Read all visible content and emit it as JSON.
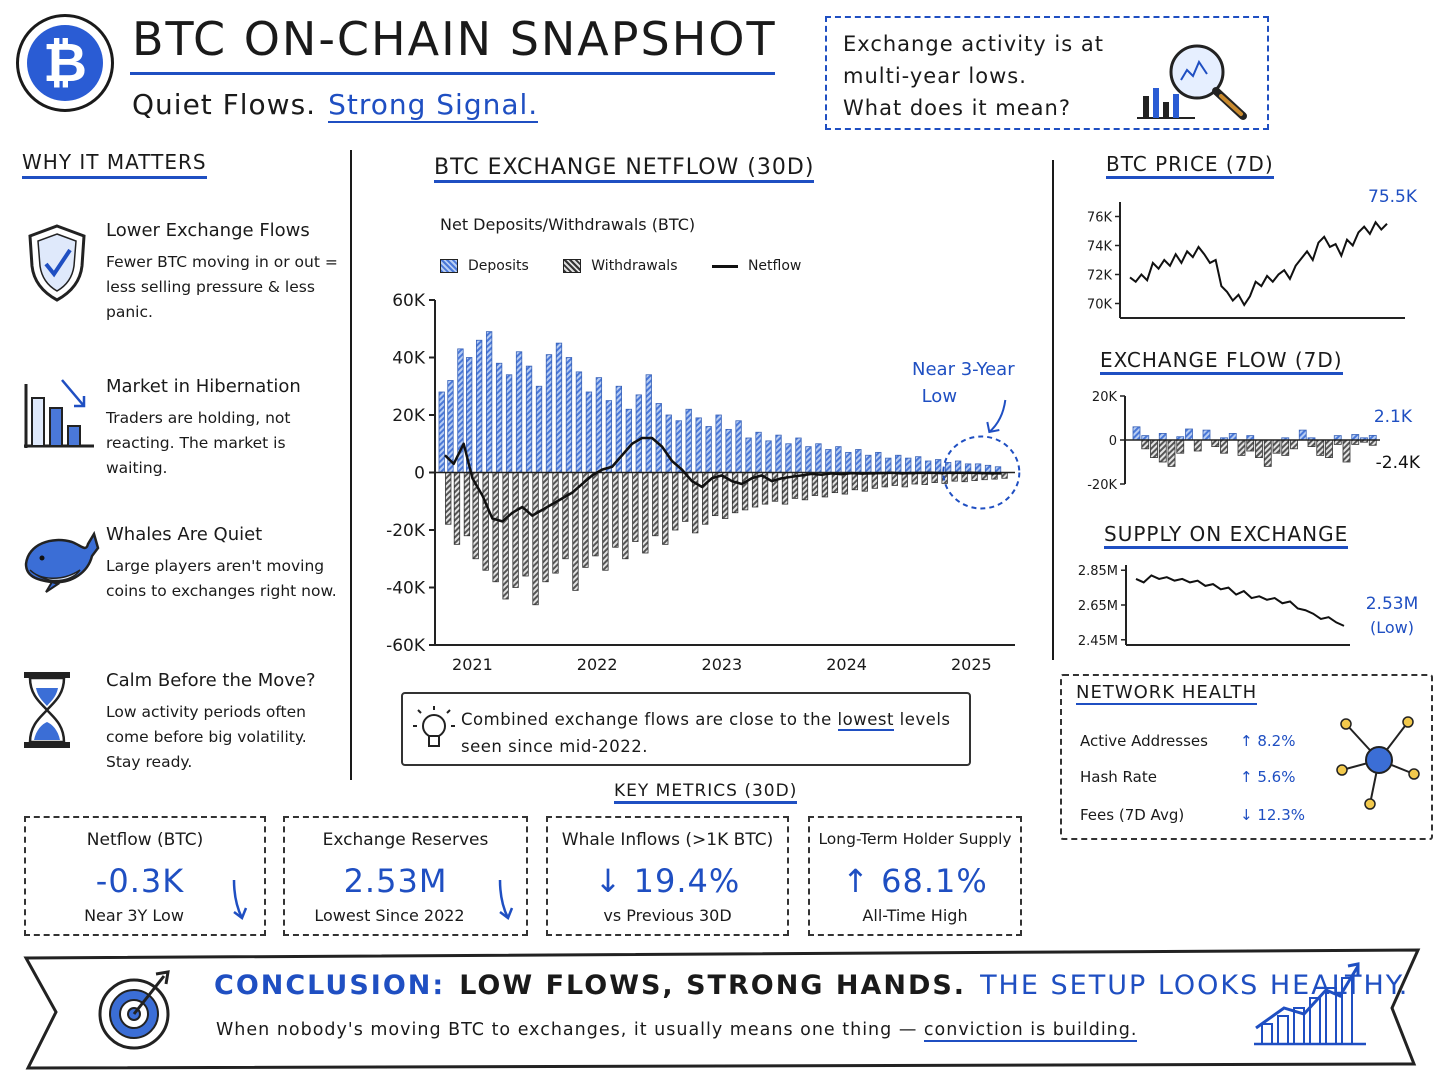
{
  "header": {
    "logo_glyph": "₿",
    "title": "BTC ON-CHAIN SNAPSHOT",
    "subtitle_plain": "Quiet Flows.",
    "subtitle_highlight": "Strong Signal."
  },
  "callout": {
    "line1": "Exchange activity is at",
    "line2": "multi-year lows.",
    "line3": "What does it mean?",
    "icon": "magnifier-chart-icon"
  },
  "why": {
    "title": "WHY IT MATTERS",
    "items": [
      {
        "icon": "shield-check-icon",
        "heading": "Lower Exchange Flows",
        "body": "Fewer BTC moving in or out = less selling pressure & less panic."
      },
      {
        "icon": "declining-bars-icon",
        "heading": "Market in Hibernation",
        "body": "Traders are holding, not reacting. The market is waiting."
      },
      {
        "icon": "whale-icon",
        "heading": "Whales Are Quiet",
        "body": "Large players aren't moving coins to exchanges right now."
      },
      {
        "icon": "hourglass-icon",
        "heading": "Calm Before the Move?",
        "body": "Low activity periods often come before big volatility. Stay ready."
      }
    ]
  },
  "main_chart": {
    "title": "BTC EXCHANGE NETFLOW (30D)",
    "subtitle": "Net Deposits/Withdrawals (BTC)",
    "legend": {
      "deposits": "Deposits",
      "withdrawals": "Withdrawals",
      "netflow": "Netflow"
    },
    "annotation_line1": "Near 3-Year",
    "annotation_line2": "Low"
  },
  "insight": {
    "icon": "lightbulb-icon",
    "text_before": "Combined exchange flows are close to the",
    "text_underlined": "lowest",
    "text_after": "levels seen since mid-2022."
  },
  "right": {
    "price_title": "BTC PRICE (7D)",
    "flow_title": "EXCHANGE FLOW (7D)",
    "supply_title": "SUPPLY ON EXCHANGE",
    "price_last_label": "75.5K",
    "flow_pos_label": "2.1K",
    "flow_neg_label": "-2.4K",
    "supply_last_label": "2.53M",
    "supply_last_note": "(Low)"
  },
  "network_health": {
    "title": "NETWORK HEALTH",
    "icon": "network-node-icon",
    "rows": [
      {
        "label": "Active Addresses",
        "value": "↑ 8.2%"
      },
      {
        "label": "Hash Rate",
        "value": "↑ 5.6%"
      },
      {
        "label": "Fees (7D Avg)",
        "value": "↓ 12.3%"
      }
    ]
  },
  "key_metrics": {
    "title": "KEY METRICS (30D)",
    "cards": [
      {
        "label": "Netflow (BTC)",
        "value": "-0.3K",
        "sub": "Near 3Y Low"
      },
      {
        "label": "Exchange Reserves",
        "value": "2.53M",
        "sub": "Lowest Since 2022"
      },
      {
        "label": "Whale Inflows (>1K BTC)",
        "value": "↓ 19.4%",
        "sub": "vs Previous 30D"
      },
      {
        "label": "Long-Term Holder Supply",
        "value": "↑ 68.1%",
        "sub": "All-Time High"
      }
    ]
  },
  "conclusion": {
    "label": "CONCLUSION:",
    "statement": "LOW FLOWS, STRONG HANDS.",
    "verdict": "THE SETUP LOOKS HEALTHY.",
    "body_before": "When nobody's moving BTC to exchanges, it usually means one thing —",
    "body_underlined": "conviction is building.",
    "icon_left": "target-arrow-icon",
    "icon_right": "rising-bars-icon"
  },
  "colors": {
    "accent": "#1f4fc2",
    "deposit": "#4a78d8",
    "withdrawal": "#555555",
    "ink": "#1a1a1a"
  },
  "chart_data": [
    {
      "type": "bar",
      "title": "BTC EXCHANGE NETFLOW (30D)",
      "subtitle": "Net Deposits/Withdrawals (BTC)",
      "ylim": [
        -60000,
        60000
      ],
      "y_ticks": [
        -60000,
        -40000,
        -20000,
        0,
        20000,
        40000,
        60000
      ],
      "y_tick_labels": [
        "-60K",
        "-40K",
        "-20K",
        "0",
        "20K",
        "40K",
        "60K"
      ],
      "x_tick_labels": [
        "2021",
        "2022",
        "2023",
        "2024",
        "2025"
      ],
      "x_range": [
        2020.7,
        2025.35
      ],
      "x": [
        2020.78,
        2020.85,
        2020.93,
        2021.0,
        2021.08,
        2021.16,
        2021.24,
        2021.32,
        2021.4,
        2021.48,
        2021.56,
        2021.64,
        2021.72,
        2021.8,
        2021.88,
        2021.96,
        2022.04,
        2022.12,
        2022.2,
        2022.28,
        2022.36,
        2022.44,
        2022.52,
        2022.6,
        2022.68,
        2022.76,
        2022.84,
        2022.92,
        2023.0,
        2023.08,
        2023.16,
        2023.24,
        2023.32,
        2023.4,
        2023.48,
        2023.56,
        2023.64,
        2023.72,
        2023.8,
        2023.88,
        2023.96,
        2024.04,
        2024.12,
        2024.2,
        2024.28,
        2024.36,
        2024.44,
        2024.52,
        2024.6,
        2024.68,
        2024.76,
        2024.84,
        2024.92,
        2025.0,
        2025.08,
        2025.16,
        2025.24
      ],
      "series": [
        {
          "name": "Deposits",
          "values": [
            28000,
            32000,
            43000,
            40000,
            46000,
            49000,
            38000,
            34000,
            42000,
            37000,
            30000,
            41000,
            45000,
            40000,
            35000,
            28000,
            33000,
            25000,
            30000,
            22000,
            27000,
            34000,
            24000,
            20000,
            18000,
            22000,
            19000,
            16000,
            20000,
            15000,
            18000,
            12000,
            14000,
            11000,
            13000,
            10000,
            12000,
            9000,
            10000,
            8000,
            9000,
            7000,
            8000,
            6000,
            7000,
            5000,
            6000,
            5000,
            5500,
            4000,
            4500,
            3500,
            4000,
            3000,
            3000,
            2500,
            2000
          ]
        },
        {
          "name": "Withdrawals",
          "values": [
            -18000,
            -25000,
            -22000,
            -30000,
            -34000,
            -38000,
            -44000,
            -40000,
            -36000,
            -46000,
            -38000,
            -35000,
            -30000,
            -41000,
            -33000,
            -29000,
            -34000,
            -26000,
            -30000,
            -24000,
            -28000,
            -22000,
            -25000,
            -20000,
            -17000,
            -21000,
            -18000,
            -15000,
            -16000,
            -14000,
            -13000,
            -12000,
            -11000,
            -10000,
            -11000,
            -9000,
            -9500,
            -8000,
            -8500,
            -7000,
            -7500,
            -6000,
            -6500,
            -5500,
            -5000,
            -4500,
            -5000,
            -4000,
            -4200,
            -3500,
            -3800,
            -3000,
            -3200,
            -2800,
            -2500,
            -2300,
            -2000
          ]
        },
        {
          "name": "Netflow",
          "values": [
            6000,
            3000,
            10000,
            -2000,
            -8000,
            -16000,
            -17000,
            -14000,
            -12000,
            -15000,
            -13000,
            -11000,
            -9000,
            -7000,
            -4000,
            -1000,
            1000,
            2000,
            6000,
            10000,
            12000,
            12000,
            9000,
            4000,
            1000,
            -3000,
            -5000,
            -2000,
            -1000,
            -3000,
            -4000,
            -2000,
            -1000,
            -3000,
            -2000,
            -1500,
            -1000,
            -500,
            -800,
            -300,
            -600,
            -200,
            -400,
            -300,
            -200,
            -100,
            -300,
            -200,
            -150,
            -100,
            -200,
            -100,
            -150,
            -100,
            -200,
            -300,
            -300
          ]
        }
      ]
    },
    {
      "type": "line",
      "title": "BTC PRICE (7D)",
      "ylim": [
        69000,
        77000
      ],
      "y_tick_labels": [
        "70K",
        "72K",
        "74K",
        "76K"
      ],
      "series": [
        {
          "values": [
            71800,
            71500,
            72000,
            71600,
            72800,
            72400,
            73000,
            72600,
            73400,
            72800,
            73600,
            73200,
            73900,
            73400,
            72800,
            73000,
            71200,
            70800,
            70200,
            70600,
            69900,
            70500,
            71500,
            71200,
            71900,
            71500,
            72000,
            72300,
            71700,
            72600,
            73100,
            73600,
            73000,
            74200,
            74600,
            73900,
            74100,
            73300,
            74400,
            74000,
            74900,
            75300,
            74800,
            75600,
            75100,
            75500
          ]
        }
      ],
      "last_label": "75.5K"
    },
    {
      "type": "bar",
      "title": "EXCHANGE FLOW (7D)",
      "ylim": [
        -20000,
        20000
      ],
      "y_tick_labels": [
        "-20K",
        "0",
        "20K"
      ],
      "series": [
        {
          "name": "Deposits",
          "values": [
            6000,
            2000,
            0,
            3000,
            0,
            1500,
            5000,
            0,
            4500,
            0,
            1000,
            3000,
            0,
            2000,
            0,
            0,
            0,
            1000,
            0,
            4500,
            1000,
            0,
            0,
            2000,
            0,
            2500,
            1000,
            2100
          ]
        },
        {
          "name": "Withdrawals",
          "values": [
            0,
            -4000,
            -8000,
            -10000,
            -12000,
            -6000,
            0,
            -5000,
            0,
            -3000,
            -6000,
            0,
            -7000,
            -5000,
            -8000,
            -12000,
            -6000,
            -7000,
            -4000,
            0,
            -3000,
            -7000,
            -8000,
            -2000,
            -10000,
            -2000,
            -1000,
            -2400
          ]
        }
      ],
      "pos_label": "2.1K",
      "neg_label": "-2.4K"
    },
    {
      "type": "line",
      "title": "SUPPLY ON EXCHANGE",
      "ylim": [
        2.42,
        2.88
      ],
      "y_tick_labels": [
        "2.45M",
        "2.65M",
        "2.85M"
      ],
      "series": [
        {
          "values": [
            2.8,
            2.78,
            2.82,
            2.8,
            2.81,
            2.79,
            2.8,
            2.78,
            2.79,
            2.76,
            2.77,
            2.74,
            2.75,
            2.71,
            2.73,
            2.69,
            2.7,
            2.68,
            2.69,
            2.66,
            2.67,
            2.63,
            2.62,
            2.6,
            2.57,
            2.58,
            2.55,
            2.53
          ]
        }
      ],
      "last_label": "2.53M",
      "last_note": "(Low)"
    }
  ]
}
